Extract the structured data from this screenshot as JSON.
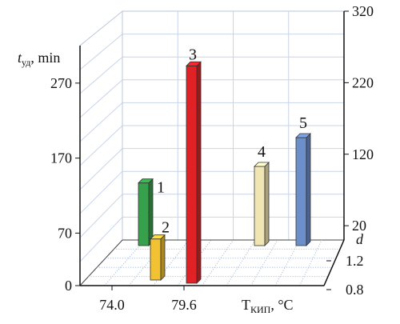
{
  "chart_data": {
    "type": "bar",
    "projection": "3d",
    "y_axis": {
      "label_main": "t",
      "label_sub": "уд",
      "label_unit": ", min",
      "ticks": [
        0,
        70,
        170,
        270
      ],
      "ylim": [
        0,
        320
      ]
    },
    "right_axis": {
      "ticks": [
        20,
        120,
        220,
        320
      ]
    },
    "x_axis": {
      "label_main": "T",
      "label_sub": "КИП",
      "label_unit": ", °C",
      "ticks": [
        "74.0",
        "79.6"
      ]
    },
    "depth_axis": {
      "label": "d",
      "ticks": [
        "0.8",
        "1.2"
      ]
    },
    "grid": true,
    "bars": [
      {
        "label": "1",
        "t_boil": "74.0",
        "d": "1.2",
        "value": 87,
        "color": "#37a04c"
      },
      {
        "label": "2",
        "t_boil": "74.0",
        "d": "0.8",
        "value": 57,
        "color": "#f2c233"
      },
      {
        "label": "3",
        "t_boil": "79.6",
        "d": "0.8",
        "value": 313,
        "color": "#e02226"
      },
      {
        "label": "4",
        "t_boil": "",
        "d": "1.2",
        "value": 110,
        "color": "#f1e6b3"
      },
      {
        "label": "5",
        "t_boil": "",
        "d": "1.2",
        "value": 150,
        "color": "#6d8fc9"
      }
    ]
  }
}
